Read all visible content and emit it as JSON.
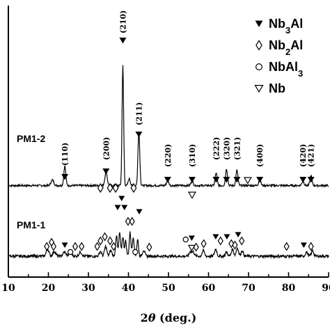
{
  "chart_data": {
    "type": "line",
    "xlabel_prefix": "2",
    "xlabel_symbol": "θ",
    "xlabel_suffix": " (deg.)",
    "xlim": [
      10,
      90
    ],
    "xticks": [
      10,
      20,
      30,
      40,
      50,
      60,
      70,
      80,
      90
    ],
    "legend": [
      {
        "symbol": "filled-down-triangle",
        "base": "Nb",
        "sub": "3",
        "rest": "Al"
      },
      {
        "symbol": "open-diamond",
        "base": "Nb",
        "sub": "2",
        "rest": "Al"
      },
      {
        "symbol": "open-circle",
        "base": "NbAl",
        "sub": "3",
        "rest": ""
      },
      {
        "symbol": "open-down-triangle",
        "base": "Nb",
        "sub": "",
        "rest": ""
      }
    ],
    "series": [
      {
        "name": "PM1-2",
        "noise": 3,
        "peaks": [
          [
            21.0,
            8,
            0.5
          ],
          [
            24.1,
            28,
            0.35
          ],
          [
            34.4,
            20,
            0.4
          ],
          [
            38.6,
            172,
            0.28
          ],
          [
            40.2,
            10,
            0.35
          ],
          [
            42.6,
            78,
            0.32
          ],
          [
            49.8,
            7,
            0.4
          ],
          [
            55.9,
            6,
            0.4
          ],
          [
            61.9,
            18,
            0.35
          ],
          [
            64.5,
            24,
            0.35
          ],
          [
            67.1,
            22,
            0.35
          ],
          [
            72.8,
            10,
            0.35
          ],
          [
            83.6,
            6,
            0.4
          ],
          [
            85.6,
            14,
            0.35
          ]
        ]
      },
      {
        "name": "PM1-1",
        "noise": 4,
        "peaks": [
          [
            19.8,
            10,
            0.5
          ],
          [
            21.5,
            7,
            0.5
          ],
          [
            24.0,
            6,
            0.5
          ],
          [
            25.5,
            6,
            0.5
          ],
          [
            28.0,
            6,
            0.5
          ],
          [
            33.0,
            7,
            0.4
          ],
          [
            34.3,
            14,
            0.4
          ],
          [
            35.6,
            8,
            0.4
          ],
          [
            37.0,
            30,
            0.3
          ],
          [
            37.8,
            34,
            0.3
          ],
          [
            38.6,
            28,
            0.3
          ],
          [
            39.3,
            22,
            0.3
          ],
          [
            40.4,
            34,
            0.3
          ],
          [
            41.2,
            28,
            0.3
          ],
          [
            42.3,
            24,
            0.3
          ],
          [
            43.8,
            9,
            0.4
          ],
          [
            55.5,
            7,
            0.4
          ],
          [
            56.2,
            6,
            0.4
          ],
          [
            58.7,
            8,
            0.4
          ],
          [
            61.8,
            10,
            0.4
          ],
          [
            64.5,
            6,
            0.4
          ],
          [
            66.0,
            10,
            0.4
          ],
          [
            67.2,
            12,
            0.4
          ],
          [
            68.4,
            8,
            0.4
          ],
          [
            84.5,
            6,
            0.4
          ],
          [
            86.0,
            8,
            0.4
          ]
        ]
      }
    ],
    "peak_labels": [
      {
        "x": 24.1,
        "text": "(110)"
      },
      {
        "x": 34.4,
        "text": "(200)"
      },
      {
        "x": 38.6,
        "text": "(210)"
      },
      {
        "x": 42.6,
        "text": "(211)"
      },
      {
        "x": 49.8,
        "text": "(220)"
      },
      {
        "x": 55.9,
        "text": "(310)"
      },
      {
        "x": 61.9,
        "text": "(222)"
      },
      {
        "x": 64.5,
        "text": "(320)"
      },
      {
        "x": 67.1,
        "text": "(321)"
      },
      {
        "x": 72.8,
        "text": "(400)"
      },
      {
        "x": 83.6,
        "text": "(420)"
      },
      {
        "x": 85.6,
        "text": "(421)"
      }
    ],
    "markers_pm12": [
      {
        "x": 24.1,
        "symbol": "filled-down-triangle"
      },
      {
        "x": 34.4,
        "symbol": "filled-down-triangle"
      },
      {
        "x": 38.6,
        "symbol": "filled-down-triangle"
      },
      {
        "x": 42.6,
        "symbol": "filled-down-triangle"
      },
      {
        "x": 49.8,
        "symbol": "filled-down-triangle"
      },
      {
        "x": 55.9,
        "symbol": "filled-down-triangle"
      },
      {
        "x": 61.9,
        "symbol": "filled-down-triangle"
      },
      {
        "x": 64.5,
        "symbol": "filled-down-triangle"
      },
      {
        "x": 67.1,
        "symbol": "filled-down-triangle"
      },
      {
        "x": 72.8,
        "symbol": "filled-down-triangle"
      },
      {
        "x": 83.6,
        "symbol": "filled-down-triangle"
      },
      {
        "x": 85.6,
        "symbol": "filled-down-triangle"
      },
      {
        "x": 33.0,
        "symbol": "open-diamond"
      },
      {
        "x": 35.4,
        "symbol": "open-diamond"
      },
      {
        "x": 36.8,
        "symbol": "open-diamond"
      },
      {
        "x": 41.3,
        "symbol": "open-diamond"
      },
      {
        "x": 55.9,
        "symbol": "open-down-triangle"
      },
      {
        "x": 69.8,
        "symbol": "open-down-triangle"
      }
    ],
    "markers_pm11": [
      {
        "x": 19.6,
        "symbol": "open-diamond"
      },
      {
        "x": 20.8,
        "symbol": "open-diamond"
      },
      {
        "x": 21.3,
        "symbol": "open-diamond"
      },
      {
        "x": 24.1,
        "symbol": "filled-down-triangle"
      },
      {
        "x": 25.5,
        "symbol": "open-circle"
      },
      {
        "x": 26.7,
        "symbol": "open-diamond"
      },
      {
        "x": 28.3,
        "symbol": "open-diamond"
      },
      {
        "x": 32.2,
        "symbol": "open-diamond"
      },
      {
        "x": 33.0,
        "symbol": "open-diamond"
      },
      {
        "x": 34.1,
        "symbol": "open-diamond"
      },
      {
        "x": 35.4,
        "symbol": "open-diamond"
      },
      {
        "x": 36.3,
        "symbol": "open-diamond"
      },
      {
        "x": 37.3,
        "symbol": "filled-down-triangle"
      },
      {
        "x": 38.3,
        "symbol": "filled-down-triangle"
      },
      {
        "x": 39.0,
        "symbol": "filled-down-triangle"
      },
      {
        "x": 39.9,
        "symbol": "open-diamond"
      },
      {
        "x": 40.9,
        "symbol": "open-diamond"
      },
      {
        "x": 41.7,
        "symbol": "open-circle"
      },
      {
        "x": 42.7,
        "symbol": "filled-down-triangle"
      },
      {
        "x": 45.2,
        "symbol": "open-diamond"
      },
      {
        "x": 54.3,
        "symbol": "open-circle"
      },
      {
        "x": 55.8,
        "symbol": "filled-down-triangle"
      },
      {
        "x": 55.8,
        "symbol": "open-down-triangle"
      },
      {
        "x": 56.9,
        "symbol": "open-diamond"
      },
      {
        "x": 58.8,
        "symbol": "open-diamond"
      },
      {
        "x": 61.8,
        "symbol": "filled-down-triangle"
      },
      {
        "x": 63.0,
        "symbol": "open-diamond"
      },
      {
        "x": 64.6,
        "symbol": "filled-down-triangle"
      },
      {
        "x": 65.7,
        "symbol": "open-diamond"
      },
      {
        "x": 66.6,
        "symbol": "open-diamond"
      },
      {
        "x": 67.4,
        "symbol": "filled-down-triangle"
      },
      {
        "x": 68.3,
        "symbol": "open-diamond"
      },
      {
        "x": 79.5,
        "symbol": "open-diamond"
      },
      {
        "x": 83.8,
        "symbol": "filled-down-triangle"
      },
      {
        "x": 85.6,
        "symbol": "open-diamond"
      }
    ]
  }
}
